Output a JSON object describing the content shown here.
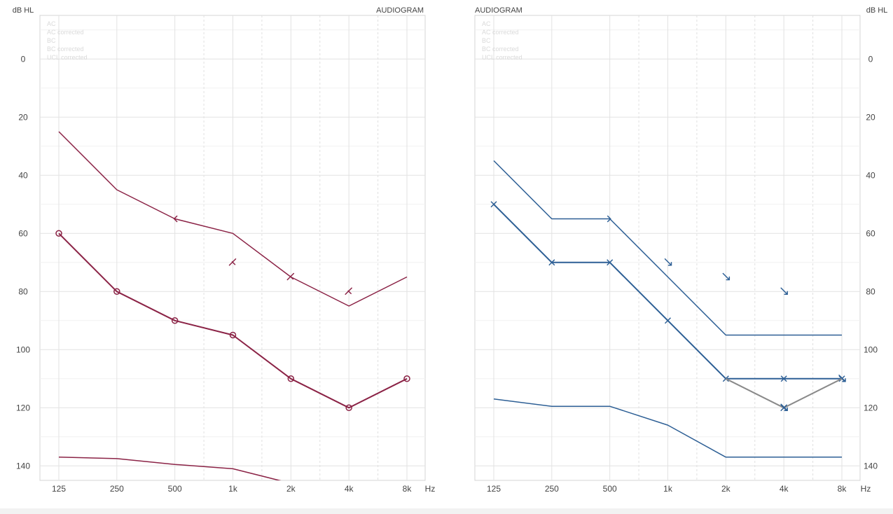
{
  "chart_data": [
    {
      "type": "line",
      "ear": "right",
      "title": "AUDIOGRAM",
      "ylabel": "dB HL",
      "xunit": "Hz",
      "x": [
        125,
        250,
        500,
        1000,
        2000,
        4000,
        8000
      ],
      "x_tick_labels": [
        "125",
        "250",
        "500",
        "1k",
        "2k",
        "4k",
        "8k"
      ],
      "ylim": [
        -15,
        145
      ],
      "y_ticks": [
        0,
        20,
        40,
        60,
        80,
        100,
        120,
        140
      ],
      "y_axis_side": "left",
      "grid": true,
      "color": "#8b2346",
      "legend": {
        "placement": "top-left",
        "items": [
          "AC",
          "AC corrected",
          "BC",
          "BC corrected",
          "UCL corrected"
        ]
      },
      "series": [
        {
          "x": [
            125,
            250,
            500,
            1000,
            2000,
            4000,
            8000
          ],
          "y": [
            60,
            80,
            90,
            95,
            110,
            120,
            110
          ],
          "marker": "circle",
          "stroke_width": 2
        },
        {
          "x": [
            125,
            250,
            500,
            1000,
            2000,
            4000,
            8000
          ],
          "y": [
            25,
            45,
            55,
            60,
            75,
            85,
            75
          ],
          "marker": "none",
          "stroke_width": 1.5
        },
        {
          "x": [
            125,
            250,
            500,
            1000,
            2000
          ],
          "y": [
            137,
            137.5,
            139.5,
            141,
            146
          ],
          "marker": "none",
          "stroke_width": 1.5
        }
      ],
      "markers": [
        {
          "x": 500,
          "y": 55,
          "symbol": "bc"
        },
        {
          "x": 1000,
          "y": 70,
          "symbol": "bc-corrected"
        },
        {
          "x": 2000,
          "y": 75,
          "symbol": "bc-corrected"
        },
        {
          "x": 4000,
          "y": 80,
          "symbol": "bc-corrected"
        }
      ]
    },
    {
      "type": "line",
      "ear": "left",
      "title": "AUDIOGRAM",
      "ylabel": "dB HL",
      "xunit": "Hz",
      "x": [
        125,
        250,
        500,
        1000,
        2000,
        4000,
        8000
      ],
      "x_tick_labels": [
        "125",
        "250",
        "500",
        "1k",
        "2k",
        "4k",
        "8k"
      ],
      "ylim": [
        -15,
        145
      ],
      "y_ticks": [
        0,
        20,
        40,
        60,
        80,
        100,
        120,
        140
      ],
      "y_axis_side": "right",
      "grid": true,
      "color": "#2d5f95",
      "secondary_color": "#8a8a8a",
      "legend": {
        "placement": "top-left",
        "items": [
          "AC",
          "AC corrected",
          "BC",
          "BC corrected",
          "UCL corrected"
        ]
      },
      "series": [
        {
          "x": [
            125,
            250,
            500,
            1000,
            2000,
            4000,
            8000
          ],
          "y": [
            50,
            70,
            70,
            90,
            110,
            110,
            110
          ],
          "marker": "x",
          "stroke_width": 2
        },
        {
          "x": [
            2000,
            4000,
            8000
          ],
          "y": [
            110,
            120,
            110
          ],
          "marker": "none",
          "stroke_width": 2,
          "color": "#8a8a8a"
        },
        {
          "x": [
            125,
            250,
            500,
            1000,
            2000,
            4000,
            8000
          ],
          "y": [
            35,
            55,
            55,
            75,
            95,
            95,
            95
          ],
          "marker": "none",
          "stroke_width": 1.5
        },
        {
          "x": [
            125,
            250,
            500,
            1000,
            2000,
            4000,
            8000
          ],
          "y": [
            117,
            119.5,
            119.5,
            126,
            137,
            137,
            137
          ],
          "marker": "none",
          "stroke_width": 1.5
        }
      ],
      "markers": [
        {
          "x": 4000,
          "y": 120,
          "symbol": "x"
        },
        {
          "x": 500,
          "y": 55,
          "symbol": "bc"
        },
        {
          "x": 1000,
          "y": 70,
          "symbol": "bc-corrected"
        },
        {
          "x": 2000,
          "y": 75,
          "symbol": "bc-corrected"
        },
        {
          "x": 4000,
          "y": 80,
          "symbol": "bc-corrected"
        },
        {
          "x": 8000,
          "y": 110,
          "symbol": "bc-corrected"
        },
        {
          "x": 4000,
          "y": 120,
          "symbol": "bc-corrected"
        }
      ]
    }
  ]
}
